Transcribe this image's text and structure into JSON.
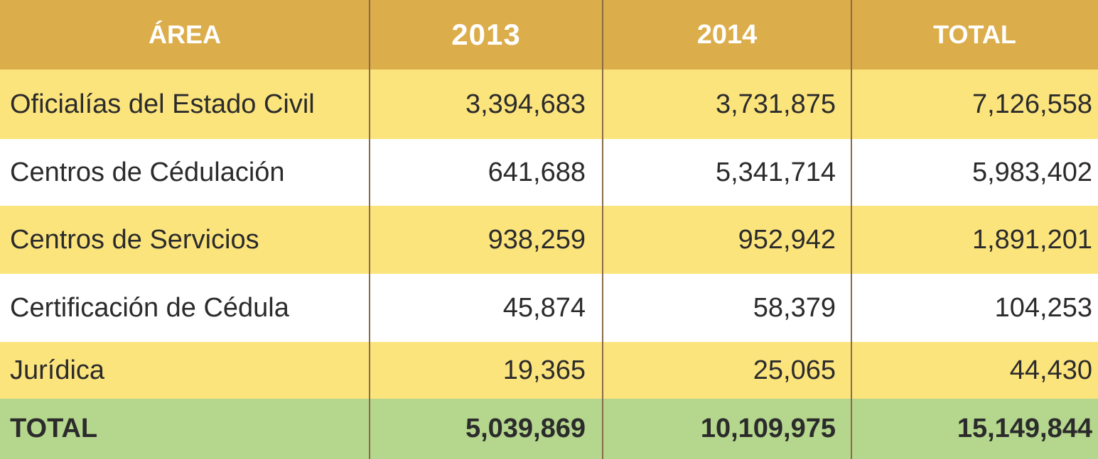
{
  "chart_data": {
    "type": "table",
    "columns": [
      "ÁREA",
      "2013",
      "2014",
      "TOTAL"
    ],
    "rows": [
      {
        "area": "Oficialías del Estado Civil",
        "y2013": "3,394,683",
        "y2014": "3,731,875",
        "total": "7,126,558"
      },
      {
        "area": "Centros de Cédulación",
        "y2013": "641,688",
        "y2014": "5,341,714",
        "total": "5,983,402"
      },
      {
        "area": "Centros de Servicios",
        "y2013": "938,259",
        "y2014": "952,942",
        "total": "1,891,201"
      },
      {
        "area": "Certificación de Cédula",
        "y2013": "45,874",
        "y2014": "58,379",
        "total": "104,253"
      },
      {
        "area": "Jurídica",
        "y2013": "19,365",
        "y2014": "25,065",
        "total": "44,430"
      }
    ],
    "total_row": {
      "area": "TOTAL",
      "y2013": "5,039,869",
      "y2014": "10,109,975",
      "total": "15,149,844"
    }
  },
  "colors": {
    "header": "#dcad4b",
    "row_highlight": "#fce47d",
    "row_plain": "#ffffff",
    "total_row": "#b5d68d",
    "divider": "#8a6a4a"
  }
}
